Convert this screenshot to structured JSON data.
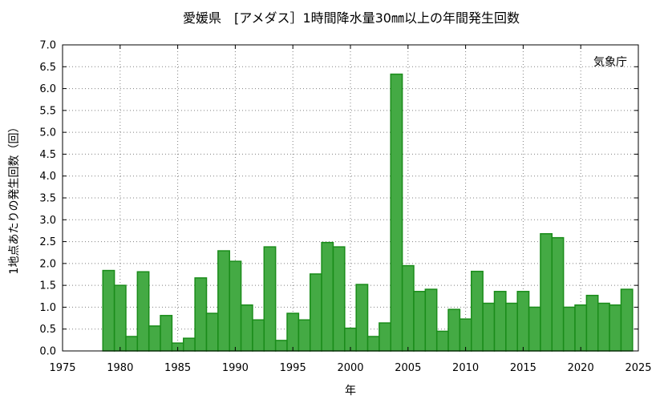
{
  "chart_data": {
    "type": "bar",
    "title": "愛媛県　[アメダス］1時間降水量30㎜以上の年間発生回数",
    "credit": "気象庁",
    "xlabel": "年",
    "ylabel": "1地点あたりの発生回数（回）",
    "xlim": [
      1975,
      2025
    ],
    "ylim": [
      0,
      7
    ],
    "x_ticks": [
      "1975",
      "1980",
      "1985",
      "1990",
      "1995",
      "2000",
      "2005",
      "2010",
      "2015",
      "2020",
      "2025"
    ],
    "y_ticks": [
      "0.0",
      "0.5",
      "1.0",
      "1.5",
      "2.0",
      "2.5",
      "3.0",
      "3.5",
      "4.0",
      "4.5",
      "5.0",
      "5.5",
      "6.0",
      "6.5",
      "7.0"
    ],
    "grid": true,
    "bar_color": "#44aa44",
    "bar_edge_color": "#1a8c1a",
    "x": [
      1979,
      1980,
      1981,
      1982,
      1983,
      1984,
      1985,
      1986,
      1987,
      1988,
      1989,
      1990,
      1991,
      1992,
      1993,
      1994,
      1995,
      1996,
      1997,
      1998,
      1999,
      2000,
      2001,
      2002,
      2003,
      2004,
      2005,
      2006,
      2007,
      2008,
      2009,
      2010,
      2011,
      2012,
      2013,
      2014,
      2015,
      2016,
      2017,
      2018,
      2019,
      2020,
      2021,
      2022,
      2023,
      2024
    ],
    "values": [
      1.84,
      1.5,
      0.33,
      1.81,
      0.57,
      0.81,
      0.18,
      0.29,
      1.67,
      0.86,
      2.29,
      2.05,
      1.05,
      0.71,
      2.38,
      0.24,
      0.86,
      0.71,
      1.76,
      2.48,
      2.38,
      0.52,
      1.52,
      0.33,
      0.64,
      6.33,
      1.95,
      1.36,
      1.41,
      0.45,
      0.95,
      0.73,
      1.82,
      1.09,
      1.36,
      1.09,
      1.36,
      1.0,
      2.68,
      2.59,
      1.0,
      1.05,
      1.27,
      1.09,
      1.05,
      1.41
    ]
  }
}
